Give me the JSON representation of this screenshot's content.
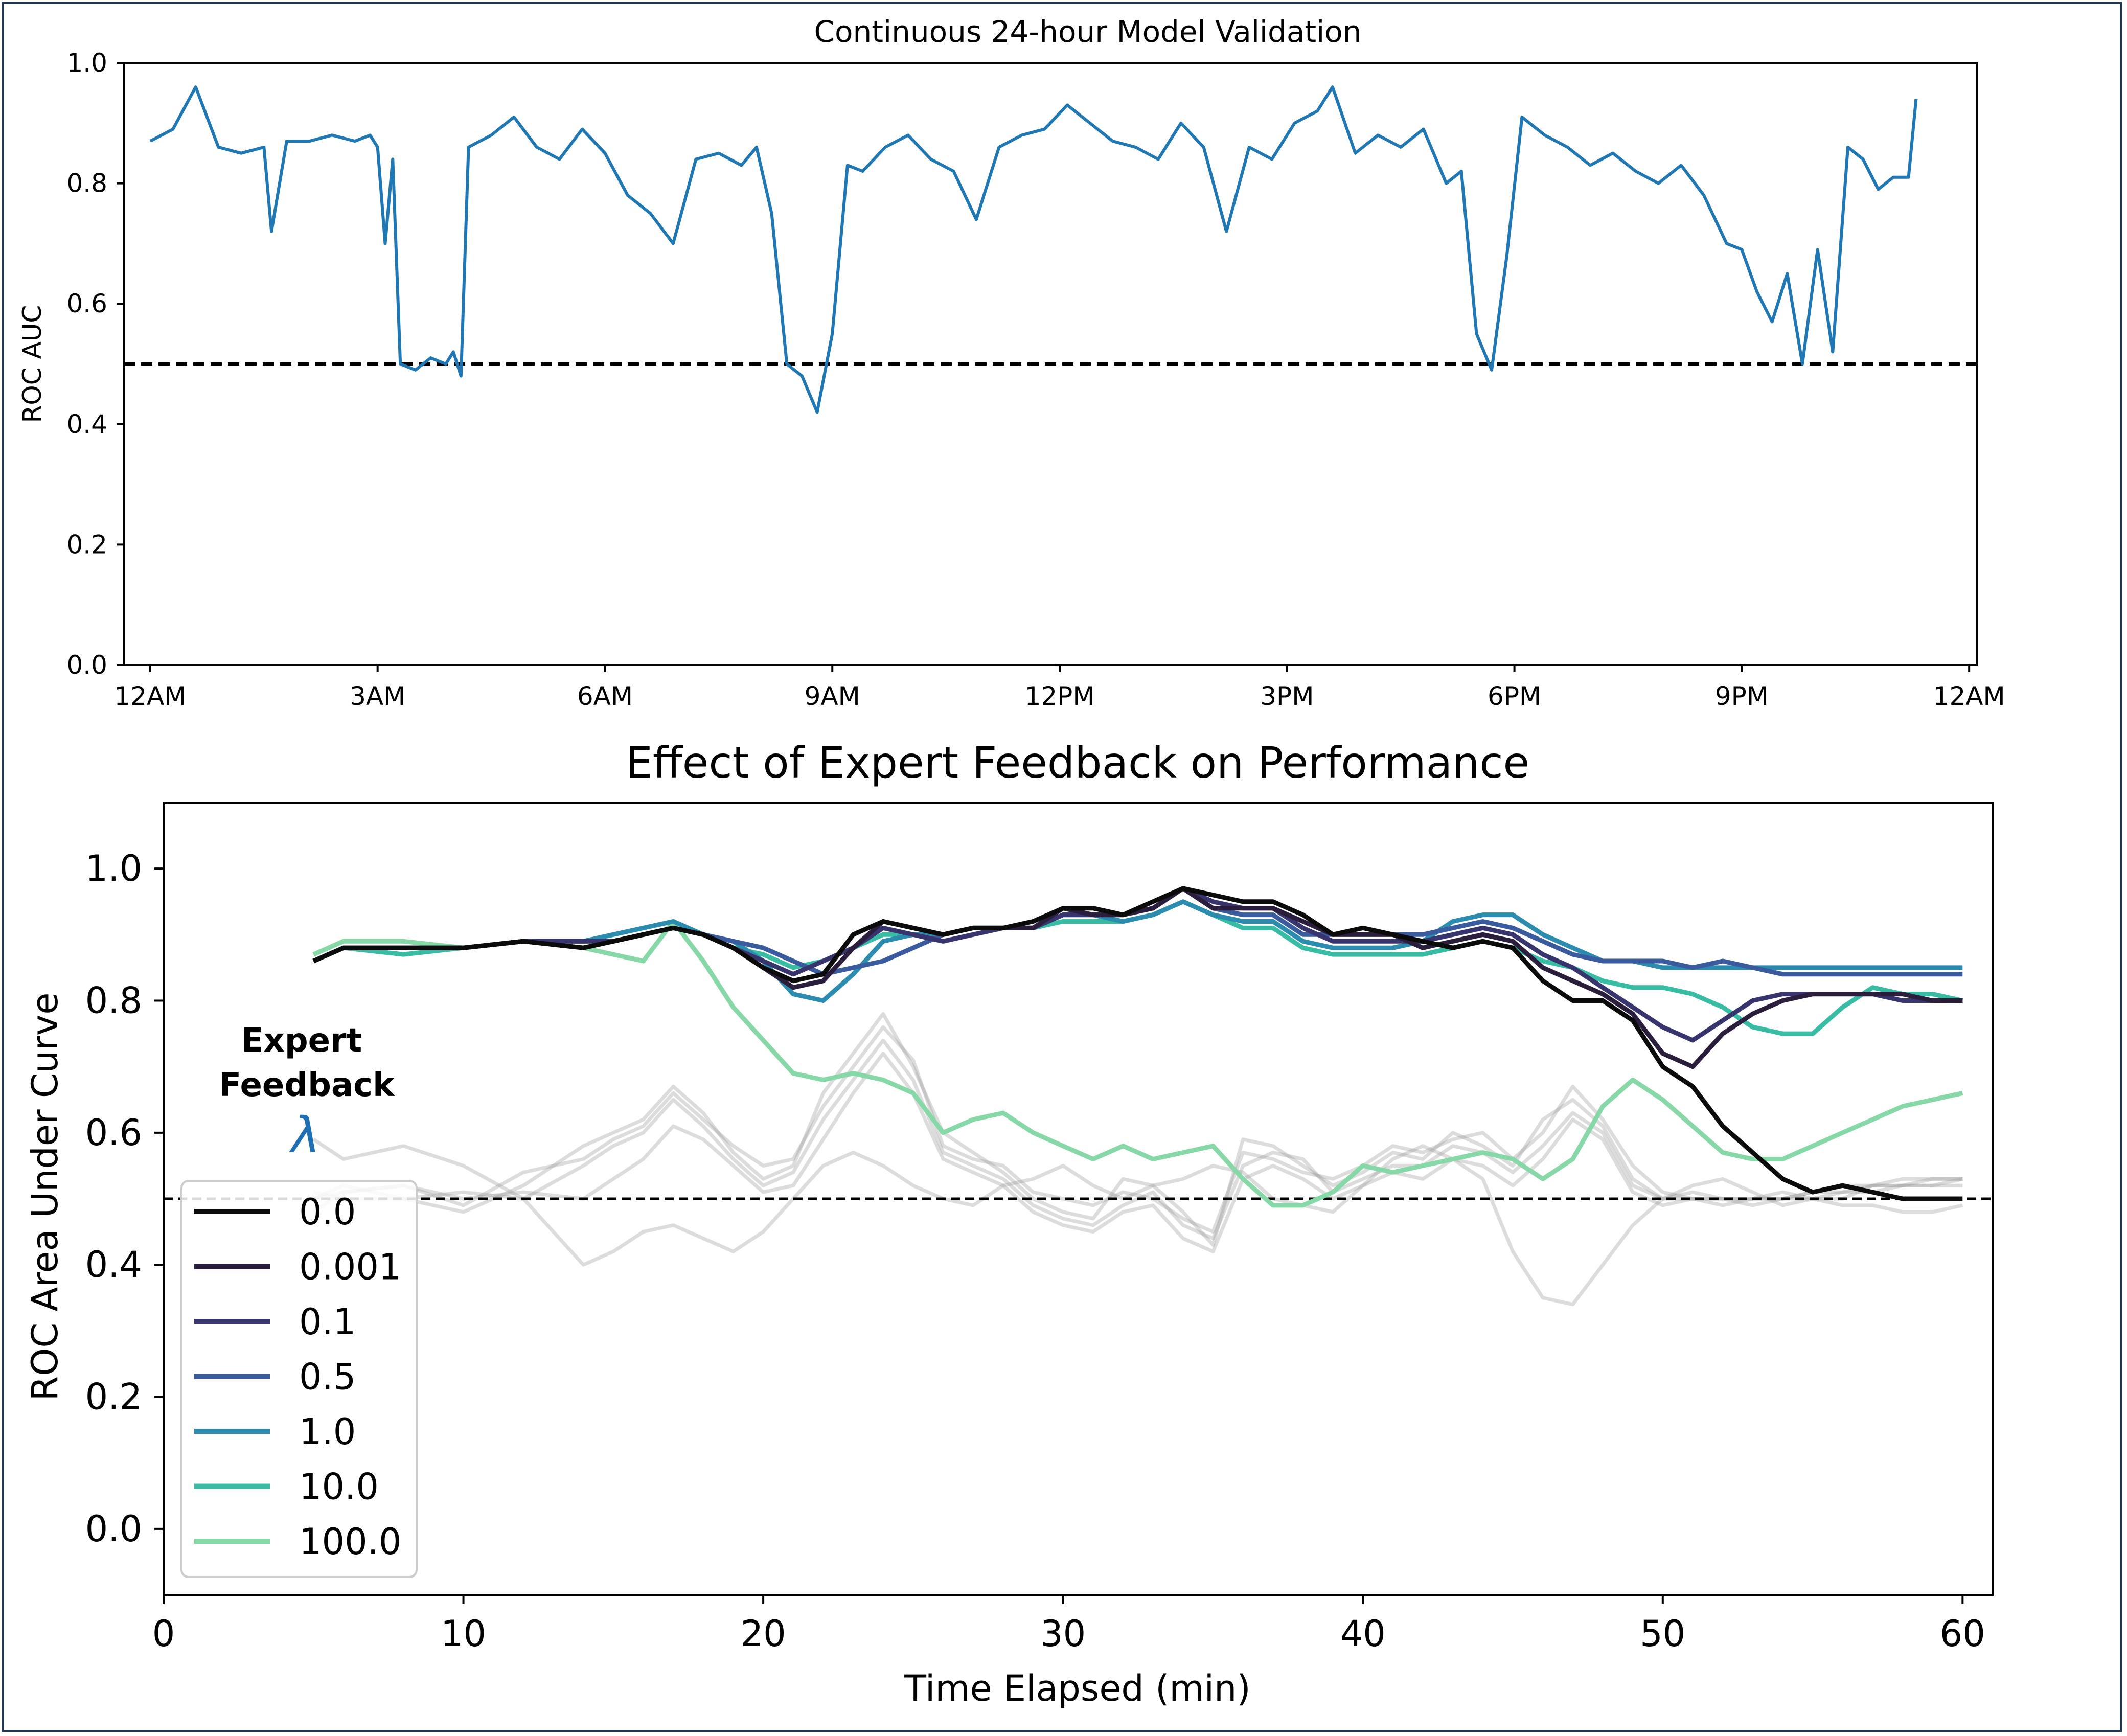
{
  "chart_data": [
    {
      "type": "line",
      "title": "Continuous 24-hour Model Validation",
      "xlabel": "",
      "ylabel": "ROC AUC",
      "ylim": [
        0.0,
        1.0
      ],
      "xlim_hours": [
        -0.35,
        24.1
      ],
      "x_tick_labels": [
        "12AM",
        "3AM",
        "6AM",
        "9AM",
        "12PM",
        "3PM",
        "6PM",
        "9PM",
        "12AM"
      ],
      "y_tick_labels": [
        "0.0",
        "0.2",
        "0.4",
        "0.6",
        "0.8",
        "1.0"
      ],
      "reference_line": {
        "y": 0.5,
        "style": "dashed",
        "color": "#000000"
      },
      "grid": false,
      "series": [
        {
          "color": "#1f77b4",
          "x_hours": [
            0.0,
            0.3,
            0.6,
            0.9,
            1.2,
            1.5,
            1.6,
            1.8,
            2.1,
            2.4,
            2.7,
            2.9,
            3.0,
            3.1,
            3.2,
            3.3,
            3.5,
            3.7,
            3.9,
            4.0,
            4.1,
            4.2,
            4.5,
            4.8,
            5.1,
            5.4,
            5.7,
            6.0,
            6.3,
            6.6,
            6.9,
            7.2,
            7.5,
            7.8,
            8.0,
            8.2,
            8.4,
            8.6,
            8.8,
            9.0,
            9.2,
            9.4,
            9.7,
            10.0,
            10.3,
            10.6,
            10.9,
            11.2,
            11.5,
            11.8,
            12.1,
            12.4,
            12.7,
            13.0,
            13.3,
            13.6,
            13.9,
            14.2,
            14.5,
            14.8,
            15.1,
            15.4,
            15.6,
            15.9,
            16.2,
            16.5,
            16.8,
            17.1,
            17.3,
            17.5,
            17.7,
            17.9,
            18.1,
            18.4,
            18.7,
            19.0,
            19.3,
            19.6,
            19.9,
            20.2,
            20.5,
            20.8,
            21.0,
            21.2,
            21.4,
            21.6,
            21.8,
            22.0,
            22.2,
            22.4,
            22.6,
            22.8,
            23.0,
            23.2,
            23.3
          ],
          "values": [
            0.87,
            0.89,
            0.96,
            0.86,
            0.85,
            0.86,
            0.72,
            0.87,
            0.87,
            0.88,
            0.87,
            0.88,
            0.86,
            0.7,
            0.84,
            0.5,
            0.49,
            0.51,
            0.5,
            0.52,
            0.48,
            0.86,
            0.88,
            0.91,
            0.86,
            0.84,
            0.89,
            0.85,
            0.78,
            0.75,
            0.7,
            0.84,
            0.85,
            0.83,
            0.86,
            0.75,
            0.5,
            0.48,
            0.42,
            0.55,
            0.83,
            0.82,
            0.86,
            0.88,
            0.84,
            0.82,
            0.74,
            0.86,
            0.88,
            0.89,
            0.93,
            0.9,
            0.87,
            0.86,
            0.84,
            0.9,
            0.86,
            0.72,
            0.86,
            0.84,
            0.9,
            0.92,
            0.96,
            0.85,
            0.88,
            0.86,
            0.89,
            0.8,
            0.82,
            0.55,
            0.49,
            0.68,
            0.91,
            0.88,
            0.86,
            0.83,
            0.85,
            0.82,
            0.8,
            0.83,
            0.78,
            0.7,
            0.69,
            0.62,
            0.57,
            0.65,
            0.5,
            0.69,
            0.52,
            0.86,
            0.84,
            0.79,
            0.81,
            0.81,
            0.94
          ]
        }
      ]
    },
    {
      "type": "line",
      "title": "Effect of Expert Feedback on Performance",
      "xlabel": "Time Elapsed (min)",
      "ylabel": "ROC Area Under Curve",
      "xlim": [
        0,
        61
      ],
      "ylim": [
        -0.1,
        1.1
      ],
      "x_tick_labels": [
        "0",
        "10",
        "20",
        "30",
        "40",
        "50",
        "60"
      ],
      "y_tick_labels": [
        "0.0",
        "0.2",
        "0.4",
        "0.6",
        "0.8",
        "1.0"
      ],
      "reference_line": {
        "y": 0.5,
        "style": "dashed",
        "color": "#000000"
      },
      "grid": false,
      "legend": {
        "title": "Expert Feedback",
        "title_symbol": "λ",
        "location": "lower-left"
      },
      "x": [
        5,
        6,
        8,
        10,
        12,
        14,
        15,
        16,
        17,
        18,
        19,
        20,
        21,
        22,
        23,
        24,
        25,
        26,
        27,
        28,
        29,
        30,
        31,
        32,
        33,
        34,
        35,
        36,
        37,
        38,
        39,
        40,
        41,
        42,
        43,
        44,
        45,
        46,
        47,
        48,
        49,
        50,
        51,
        52,
        53,
        54,
        55,
        56,
        57,
        58,
        59,
        60
      ],
      "series": [
        {
          "name": "0.0",
          "color": "#0b0b0b",
          "values": [
            0.86,
            0.88,
            0.88,
            0.88,
            0.89,
            0.88,
            0.89,
            0.9,
            0.91,
            0.9,
            0.88,
            0.85,
            0.83,
            0.84,
            0.9,
            0.92,
            0.91,
            0.9,
            0.91,
            0.91,
            0.92,
            0.94,
            0.94,
            0.93,
            0.95,
            0.97,
            0.96,
            0.95,
            0.95,
            0.93,
            0.9,
            0.91,
            0.9,
            0.89,
            0.88,
            0.89,
            0.88,
            0.83,
            0.8,
            0.8,
            0.77,
            0.7,
            0.67,
            0.61,
            0.57,
            0.53,
            0.51,
            0.52,
            0.51,
            0.5,
            0.5,
            0.5
          ]
        },
        {
          "name": "0.001",
          "color": "#2a1e3c",
          "values": [
            0.86,
            0.88,
            0.88,
            0.88,
            0.89,
            0.88,
            0.89,
            0.9,
            0.91,
            0.9,
            0.88,
            0.85,
            0.82,
            0.83,
            0.88,
            0.92,
            0.91,
            0.9,
            0.91,
            0.91,
            0.91,
            0.94,
            0.93,
            0.93,
            0.94,
            0.97,
            0.94,
            0.94,
            0.94,
            0.92,
            0.9,
            0.9,
            0.9,
            0.88,
            0.89,
            0.9,
            0.89,
            0.85,
            0.83,
            0.81,
            0.78,
            0.72,
            0.7,
            0.75,
            0.78,
            0.8,
            0.81,
            0.81,
            0.81,
            0.81,
            0.8,
            0.8
          ]
        },
        {
          "name": "0.1",
          "color": "#38356e",
          "values": [
            0.86,
            0.88,
            0.88,
            0.88,
            0.89,
            0.89,
            0.89,
            0.9,
            0.91,
            0.9,
            0.88,
            0.86,
            0.84,
            0.86,
            0.88,
            0.91,
            0.9,
            0.89,
            0.9,
            0.91,
            0.91,
            0.93,
            0.93,
            0.93,
            0.94,
            0.97,
            0.95,
            0.94,
            0.94,
            0.91,
            0.89,
            0.89,
            0.89,
            0.89,
            0.9,
            0.91,
            0.9,
            0.87,
            0.85,
            0.82,
            0.79,
            0.76,
            0.74,
            0.77,
            0.8,
            0.81,
            0.81,
            0.81,
            0.81,
            0.8,
            0.8,
            0.8
          ]
        },
        {
          "name": "0.5",
          "color": "#3a5b9e",
          "values": [
            0.86,
            0.88,
            0.88,
            0.88,
            0.89,
            0.89,
            0.89,
            0.9,
            0.91,
            0.9,
            0.89,
            0.88,
            0.86,
            0.84,
            0.85,
            0.86,
            0.88,
            0.9,
            0.91,
            0.91,
            0.91,
            0.93,
            0.93,
            0.93,
            0.94,
            0.97,
            0.94,
            0.93,
            0.93,
            0.9,
            0.9,
            0.9,
            0.9,
            0.9,
            0.91,
            0.92,
            0.91,
            0.89,
            0.87,
            0.86,
            0.86,
            0.86,
            0.85,
            0.86,
            0.85,
            0.84,
            0.84,
            0.84,
            0.84,
            0.84,
            0.84,
            0.84
          ]
        },
        {
          "name": "1.0",
          "color": "#2b8cb0",
          "values": [
            0.86,
            0.88,
            0.88,
            0.88,
            0.89,
            0.89,
            0.9,
            0.91,
            0.92,
            0.9,
            0.89,
            0.86,
            0.81,
            0.8,
            0.84,
            0.89,
            0.9,
            0.9,
            0.91,
            0.91,
            0.91,
            0.93,
            0.93,
            0.92,
            0.93,
            0.95,
            0.93,
            0.92,
            0.92,
            0.89,
            0.88,
            0.88,
            0.88,
            0.89,
            0.92,
            0.93,
            0.93,
            0.9,
            0.88,
            0.86,
            0.86,
            0.85,
            0.85,
            0.85,
            0.85,
            0.85,
            0.85,
            0.85,
            0.85,
            0.85,
            0.85,
            0.85
          ]
        },
        {
          "name": "10.0",
          "color": "#38bda4",
          "values": [
            0.86,
            0.88,
            0.87,
            0.88,
            0.89,
            0.88,
            0.89,
            0.9,
            0.91,
            0.9,
            0.88,
            0.87,
            0.85,
            0.86,
            0.88,
            0.9,
            0.9,
            0.9,
            0.91,
            0.91,
            0.91,
            0.92,
            0.92,
            0.92,
            0.93,
            0.95,
            0.93,
            0.91,
            0.91,
            0.88,
            0.87,
            0.87,
            0.87,
            0.87,
            0.88,
            0.89,
            0.88,
            0.86,
            0.85,
            0.83,
            0.82,
            0.82,
            0.81,
            0.79,
            0.76,
            0.75,
            0.75,
            0.79,
            0.82,
            0.81,
            0.81,
            0.8
          ]
        },
        {
          "name": "100.0",
          "color": "#86d8a6",
          "values": [
            0.87,
            0.89,
            0.89,
            0.88,
            0.89,
            0.88,
            0.87,
            0.86,
            0.92,
            0.86,
            0.79,
            0.74,
            0.69,
            0.68,
            0.69,
            0.68,
            0.66,
            0.6,
            0.62,
            0.63,
            0.6,
            0.58,
            0.56,
            0.58,
            0.56,
            0.57,
            0.58,
            0.53,
            0.49,
            0.49,
            0.51,
            0.55,
            0.54,
            0.55,
            0.56,
            0.57,
            0.56,
            0.53,
            0.56,
            0.64,
            0.68,
            0.65,
            0.61,
            0.57,
            0.56,
            0.56,
            0.58,
            0.6,
            0.62,
            0.64,
            0.65,
            0.66
          ]
        }
      ],
      "grey_series_values": [
        [
          0.5,
          0.52,
          0.5,
          0.48,
          0.52,
          0.58,
          0.6,
          0.62,
          0.67,
          0.63,
          0.57,
          0.53,
          0.55,
          0.66,
          0.72,
          0.78,
          0.7,
          0.6,
          0.57,
          0.54,
          0.5,
          0.48,
          0.47,
          0.53,
          0.52,
          0.48,
          0.43,
          0.59,
          0.58,
          0.55,
          0.52,
          0.54,
          0.57,
          0.56,
          0.6,
          0.58,
          0.55,
          0.62,
          0.65,
          0.61,
          0.53,
          0.5,
          0.5,
          0.5,
          0.5,
          0.5,
          0.5,
          0.51,
          0.51,
          0.52,
          0.52,
          0.53
        ],
        [
          0.5,
          0.51,
          0.52,
          0.49,
          0.54,
          0.56,
          0.59,
          0.61,
          0.66,
          0.62,
          0.58,
          0.55,
          0.56,
          0.64,
          0.7,
          0.76,
          0.71,
          0.58,
          0.56,
          0.55,
          0.51,
          0.5,
          0.49,
          0.51,
          0.5,
          0.47,
          0.45,
          0.57,
          0.56,
          0.54,
          0.53,
          0.55,
          0.58,
          0.57,
          0.59,
          0.6,
          0.56,
          0.6,
          0.67,
          0.62,
          0.55,
          0.51,
          0.5,
          0.49,
          0.5,
          0.51,
          0.5,
          0.5,
          0.52,
          0.52,
          0.52,
          0.52
        ],
        [
          0.51,
          0.5,
          0.5,
          0.51,
          0.5,
          0.55,
          0.58,
          0.6,
          0.65,
          0.61,
          0.56,
          0.52,
          0.54,
          0.62,
          0.68,
          0.74,
          0.68,
          0.57,
          0.55,
          0.53,
          0.49,
          0.47,
          0.46,
          0.49,
          0.51,
          0.46,
          0.44,
          0.55,
          0.57,
          0.56,
          0.51,
          0.53,
          0.55,
          0.55,
          0.58,
          0.57,
          0.54,
          0.58,
          0.63,
          0.6,
          0.52,
          0.5,
          0.51,
          0.5,
          0.49,
          0.5,
          0.51,
          0.51,
          0.52,
          0.53,
          0.53,
          0.53
        ],
        [
          0.48,
          0.51,
          0.52,
          0.5,
          0.51,
          0.5,
          0.53,
          0.56,
          0.61,
          0.59,
          0.55,
          0.51,
          0.52,
          0.59,
          0.66,
          0.72,
          0.66,
          0.56,
          0.54,
          0.52,
          0.48,
          0.46,
          0.45,
          0.48,
          0.49,
          0.44,
          0.42,
          0.53,
          0.55,
          0.53,
          0.5,
          0.52,
          0.54,
          0.53,
          0.56,
          0.55,
          0.52,
          0.56,
          0.62,
          0.59,
          0.51,
          0.49,
          0.5,
          0.5,
          0.5,
          0.5,
          0.51,
          0.52,
          0.52,
          0.52,
          0.53,
          0.53
        ],
        [
          0.59,
          0.56,
          0.58,
          0.55,
          0.5,
          0.4,
          0.42,
          0.45,
          0.46,
          0.44,
          0.42,
          0.45,
          0.5,
          0.55,
          0.57,
          0.55,
          0.52,
          0.5,
          0.49,
          0.52,
          0.53,
          0.55,
          0.52,
          0.5,
          0.52,
          0.53,
          0.55,
          0.54,
          0.5,
          0.49,
          0.48,
          0.52,
          0.56,
          0.58,
          0.56,
          0.53,
          0.42,
          0.35,
          0.34,
          0.4,
          0.46,
          0.5,
          0.52,
          0.53,
          0.51,
          0.49,
          0.5,
          0.49,
          0.49,
          0.48,
          0.48,
          0.49
        ]
      ]
    }
  ]
}
